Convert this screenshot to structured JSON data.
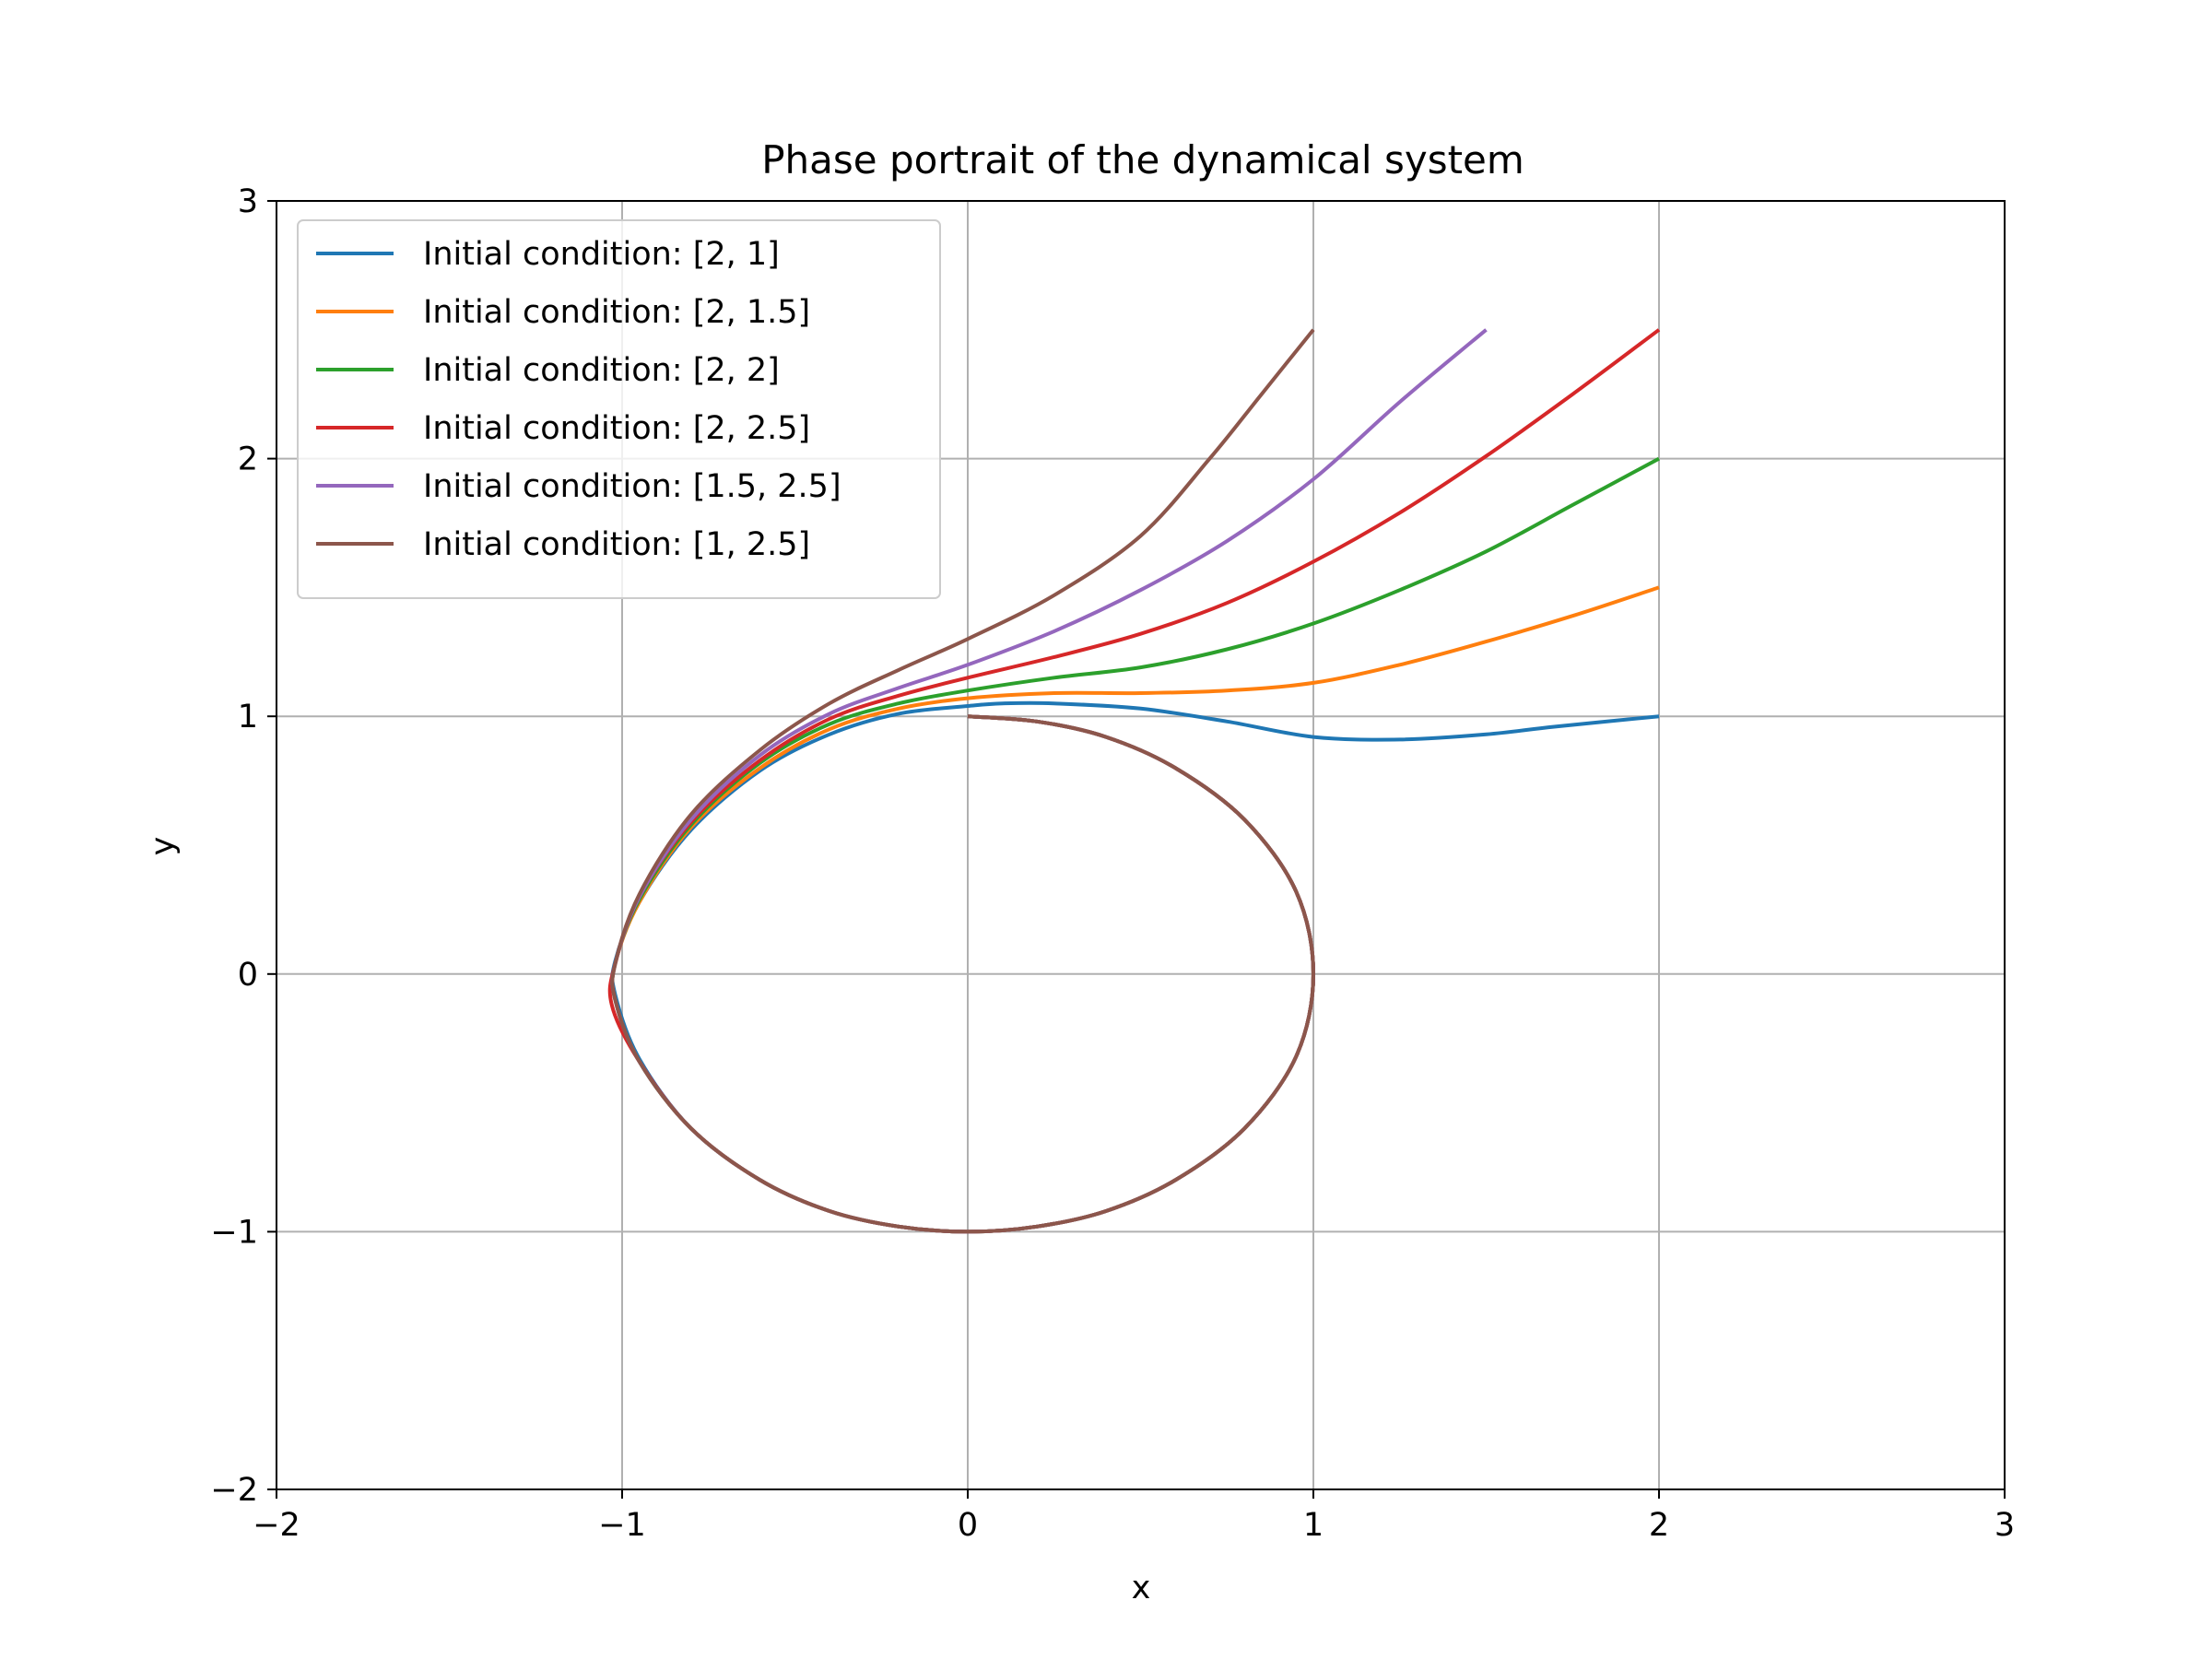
{
  "chart_data": {
    "type": "line",
    "title": "Phase portrait of the dynamical system",
    "xlabel": "x",
    "ylabel": "y",
    "xlim": [
      -2,
      3
    ],
    "ylim": [
      -2,
      3
    ],
    "xticks": [
      -2,
      -1,
      0,
      1,
      2,
      3
    ],
    "yticks": [
      -2,
      -1,
      0,
      1,
      2,
      3
    ],
    "xtick_labels": [
      "−2",
      "−1",
      "0",
      "1",
      "2",
      "3"
    ],
    "ytick_labels": [
      "−2",
      "−1",
      "0",
      "1",
      "2",
      "3"
    ],
    "grid": true,
    "legend_position": "top-left",
    "series": [
      {
        "name": "Initial condition: [2, 1]",
        "color": "#1f77b4",
        "x": [
          2.0,
          1.7,
          1.5,
          1.25,
          1.0,
          0.75,
          0.5,
          0.25,
          0.1,
          0.0,
          -0.2,
          -0.4,
          -0.6,
          -0.8,
          -0.95,
          -1.02,
          -1.02,
          -0.95,
          -0.8,
          -0.6,
          -0.4,
          -0.2,
          0.0,
          0.2,
          0.4,
          0.6,
          0.8,
          0.95,
          1.0,
          0.95,
          0.8,
          0.6,
          0.4,
          0.2,
          0.0
        ],
        "y": [
          1.0,
          0.96,
          0.93,
          0.91,
          0.92,
          0.98,
          1.03,
          1.05,
          1.05,
          1.04,
          1.01,
          0.93,
          0.79,
          0.56,
          0.28,
          0.05,
          -0.08,
          -0.33,
          -0.6,
          -0.8,
          -0.92,
          -0.98,
          -1.0,
          -0.98,
          -0.92,
          -0.8,
          -0.6,
          -0.32,
          0.0,
          0.32,
          0.6,
          0.8,
          0.92,
          0.98,
          1.0
        ]
      },
      {
        "name": "Initial condition: [2, 1.5]",
        "color": "#ff7f0e",
        "x": [
          2.0,
          1.75,
          1.5,
          1.25,
          1.0,
          0.75,
          0.5,
          0.25,
          0.0,
          -0.2,
          -0.4,
          -0.6,
          -0.8,
          -0.95,
          -1.02,
          -1.02,
          -0.95,
          -0.8,
          -0.6,
          -0.4,
          -0.2,
          0.0,
          0.2,
          0.4,
          0.6,
          0.8,
          0.95,
          1.0,
          0.95,
          0.8,
          0.6,
          0.4,
          0.2,
          0.0
        ],
        "y": [
          1.5,
          1.39,
          1.29,
          1.2,
          1.13,
          1.1,
          1.09,
          1.09,
          1.07,
          1.03,
          0.95,
          0.8,
          0.57,
          0.28,
          0.04,
          -0.1,
          -0.34,
          -0.6,
          -0.8,
          -0.92,
          -0.98,
          -1.0,
          -0.98,
          -0.92,
          -0.8,
          -0.6,
          -0.32,
          0.0,
          0.32,
          0.6,
          0.8,
          0.92,
          0.98,
          1.0
        ]
      },
      {
        "name": "Initial condition: [2, 2]",
        "color": "#2ca02c",
        "x": [
          2.0,
          1.75,
          1.5,
          1.25,
          1.0,
          0.75,
          0.5,
          0.25,
          0.0,
          -0.2,
          -0.4,
          -0.6,
          -0.8,
          -0.95,
          -1.02,
          -1.02,
          -0.95,
          -0.8,
          -0.6,
          -0.4,
          -0.2,
          0.0,
          0.2,
          0.4,
          0.6,
          0.8,
          0.95,
          1.0,
          0.95,
          0.8,
          0.6,
          0.4,
          0.2,
          0.0
        ],
        "y": [
          2.0,
          1.82,
          1.64,
          1.49,
          1.36,
          1.26,
          1.19,
          1.15,
          1.1,
          1.05,
          0.97,
          0.82,
          0.58,
          0.29,
          0.04,
          -0.1,
          -0.34,
          -0.6,
          -0.8,
          -0.92,
          -0.98,
          -1.0,
          -0.98,
          -0.92,
          -0.8,
          -0.6,
          -0.32,
          0.0,
          0.32,
          0.6,
          0.8,
          0.92,
          0.98,
          1.0
        ]
      },
      {
        "name": "Initial condition: [2, 2.5]",
        "color": "#d62728",
        "x": [
          2.0,
          1.75,
          1.5,
          1.25,
          1.0,
          0.75,
          0.5,
          0.25,
          0.0,
          -0.2,
          -0.4,
          -0.6,
          -0.8,
          -0.95,
          -1.02,
          -1.03,
          -0.95,
          -0.8,
          -0.6,
          -0.4,
          -0.2,
          0.0,
          0.2,
          0.4,
          0.6,
          0.8,
          0.95,
          1.0,
          0.95,
          0.8,
          0.6,
          0.4,
          0.2,
          0.0
        ],
        "y": [
          2.5,
          2.25,
          2.01,
          1.79,
          1.6,
          1.44,
          1.32,
          1.23,
          1.15,
          1.08,
          0.99,
          0.83,
          0.59,
          0.3,
          0.04,
          -0.12,
          -0.34,
          -0.6,
          -0.8,
          -0.92,
          -0.98,
          -1.0,
          -0.98,
          -0.92,
          -0.8,
          -0.6,
          -0.32,
          0.0,
          0.32,
          0.6,
          0.8,
          0.92,
          0.98,
          1.0
        ]
      },
      {
        "name": "Initial condition: [1.5, 2.5]",
        "color": "#9467bd",
        "x": [
          1.5,
          1.25,
          1.0,
          0.75,
          0.5,
          0.25,
          0.0,
          -0.2,
          -0.4,
          -0.6,
          -0.8,
          -0.95,
          -1.02,
          -1.02,
          -0.95,
          -0.8,
          -0.6,
          -0.4,
          -0.2,
          0.0,
          0.2,
          0.4,
          0.6,
          0.8,
          0.95,
          1.0,
          0.95,
          0.8,
          0.6,
          0.4,
          0.2,
          0.0
        ],
        "y": [
          2.5,
          2.22,
          1.92,
          1.68,
          1.49,
          1.33,
          1.2,
          1.11,
          1.01,
          0.85,
          0.6,
          0.3,
          0.04,
          -0.1,
          -0.34,
          -0.6,
          -0.8,
          -0.92,
          -0.98,
          -1.0,
          -0.98,
          -0.92,
          -0.8,
          -0.6,
          -0.32,
          0.0,
          0.32,
          0.6,
          0.8,
          0.92,
          0.98,
          1.0
        ]
      },
      {
        "name": "Initial condition: [1, 2.5]",
        "color": "#8c564b",
        "x": [
          1.0,
          0.85,
          0.7,
          0.5,
          0.25,
          0.0,
          -0.2,
          -0.4,
          -0.6,
          -0.8,
          -0.95,
          -1.02,
          -1.02,
          -0.95,
          -0.8,
          -0.6,
          -0.4,
          -0.2,
          0.0,
          0.2,
          0.4,
          0.6,
          0.8,
          0.95,
          1.0,
          0.95,
          0.8,
          0.6,
          0.4,
          0.2,
          0.0
        ],
        "y": [
          2.5,
          2.25,
          2.0,
          1.7,
          1.47,
          1.3,
          1.18,
          1.05,
          0.87,
          0.62,
          0.31,
          0.04,
          -0.1,
          -0.34,
          -0.6,
          -0.8,
          -0.92,
          -0.98,
          -1.0,
          -0.98,
          -0.92,
          -0.8,
          -0.6,
          -0.32,
          0.0,
          0.32,
          0.6,
          0.8,
          0.92,
          0.98,
          1.0
        ]
      }
    ]
  }
}
